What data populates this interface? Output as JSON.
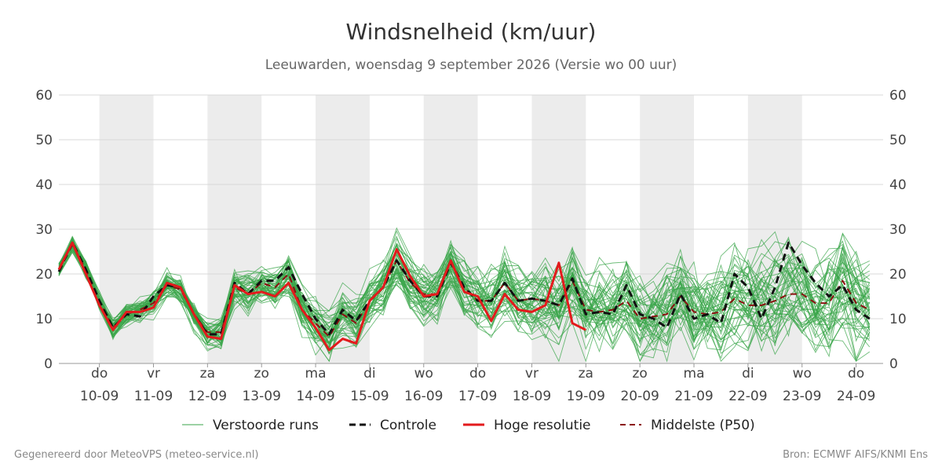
{
  "title": "Windsnelheid (km/uur)",
  "subtitle": "Leeuwarden, woensdag  9 september 2026 (Versie wo 00 uur)",
  "footer_left": "Gegenereerd door MeteoVPS (meteo-service.nl)",
  "footer_right": "Bron: ECMWF AIFS/KNMI Ens",
  "colors": {
    "perturbed": "#3aa64a",
    "control": "#111111",
    "hires": "#e31a1c",
    "median": "#8b1010",
    "band": "#ececec",
    "grid": "#d9d9d9",
    "axis_text": "#444444"
  },
  "chart_data": {
    "type": "line",
    "title": "Windsnelheid (km/uur)",
    "ylim": [
      0,
      60
    ],
    "yticks": [
      0,
      10,
      20,
      30,
      40,
      50,
      60
    ],
    "xlim": [
      -0.75,
      14.5
    ],
    "xticks": [
      {
        "day": "do",
        "date": "10-09"
      },
      {
        "day": "vr",
        "date": "11-09"
      },
      {
        "day": "za",
        "date": "12-09"
      },
      {
        "day": "zo",
        "date": "13-09"
      },
      {
        "day": "ma",
        "date": "14-09"
      },
      {
        "day": "di",
        "date": "15-09"
      },
      {
        "day": "wo",
        "date": "16-09"
      },
      {
        "day": "do",
        "date": "17-09"
      },
      {
        "day": "vr",
        "date": "18-09"
      },
      {
        "day": "za",
        "date": "19-09"
      },
      {
        "day": "zo",
        "date": "20-09"
      },
      {
        "day": "ma",
        "date": "21-09"
      },
      {
        "day": "di",
        "date": "22-09"
      },
      {
        "day": "wo",
        "date": "23-09"
      },
      {
        "day": "do",
        "date": "24-09"
      }
    ],
    "shaded_days": [
      [
        0,
        1
      ],
      [
        2,
        3
      ],
      [
        4,
        5
      ],
      [
        6,
        7
      ],
      [
        8,
        9
      ],
      [
        10,
        11
      ],
      [
        12,
        13
      ]
    ],
    "grid": true,
    "legend_position": "bottom",
    "legend": [
      {
        "label": "Verstoorde runs",
        "key": "perturbed"
      },
      {
        "label": "Controle",
        "key": "control"
      },
      {
        "label": "Hoge resolutie",
        "key": "hires"
      },
      {
        "label": "Middelste (P50)",
        "key": "median"
      }
    ],
    "time_step_days": 0.25,
    "series": [
      {
        "name": "Controle",
        "x_start": -0.75,
        "values": [
          20.5,
          27,
          21,
          14,
          8,
          11,
          10.5,
          15,
          17.5,
          17,
          11,
          6.5,
          6.5,
          18,
          15.5,
          18.5,
          18.5,
          21.5,
          15.5,
          10,
          6.5,
          12,
          9.5,
          14,
          17,
          23,
          18.5,
          15,
          15,
          22.5,
          17,
          14,
          14,
          18,
          14,
          14.5,
          14,
          13,
          19,
          11,
          11.5,
          11,
          17.5,
          11,
          10,
          8,
          15.5,
          10,
          11,
          9,
          20,
          17,
          10,
          17,
          27,
          22,
          18,
          15,
          17.5,
          12,
          10
        ]
      },
      {
        "name": "Hoge resolutie",
        "x_start": -0.75,
        "values": [
          21,
          27,
          20,
          13,
          7.5,
          11.5,
          11.5,
          12.5,
          18,
          17,
          11,
          6,
          5.5,
          17.5,
          15.5,
          16,
          15,
          18,
          12,
          8,
          3,
          5.5,
          4.5,
          14,
          17,
          25.5,
          19.5,
          15,
          15.5,
          23,
          16,
          15,
          9.5,
          15.5,
          12,
          11.5,
          13,
          22.5,
          9,
          7.5
        ]
      },
      {
        "name": "Middelste (P50)",
        "x_start": -0.75,
        "values": [
          21,
          26.5,
          21,
          14,
          8,
          11,
          12,
          13.5,
          17.5,
          16.5,
          11,
          7,
          7,
          17,
          15.5,
          18,
          17,
          20,
          12,
          9,
          6,
          11,
          9,
          14,
          17,
          23,
          18,
          15.5,
          15.5,
          23,
          17,
          14,
          14,
          18,
          14,
          14.5,
          14,
          13,
          18.5,
          12,
          11.5,
          12,
          14,
          10,
          10.5,
          11,
          15,
          11.5,
          11,
          11.5,
          14.5,
          13,
          13,
          14,
          15.5,
          15.5,
          13.5,
          13.5,
          18.5,
          13.5,
          12
        ]
      }
    ]
  }
}
